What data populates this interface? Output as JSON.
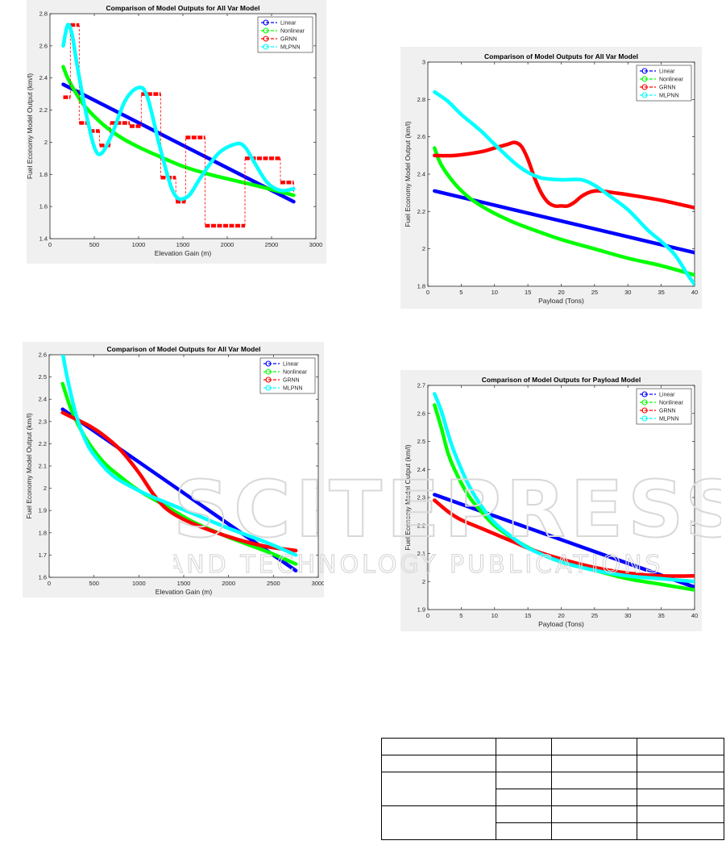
{
  "chart_data": [
    {
      "type": "line",
      "title": "Comparison of Model Outputs for All Var Model",
      "xlabel": "Elevation Gain (m)",
      "ylabel": "Fuel Economy Model Output (km/l)",
      "xlim": [
        0,
        3000
      ],
      "ylim": [
        1.4,
        2.8
      ],
      "xticks": [
        0,
        500,
        1000,
        1500,
        2000,
        2500,
        3000
      ],
      "yticks": [
        1.4,
        1.6,
        1.8,
        2.0,
        2.2,
        2.4,
        2.6,
        2.8
      ],
      "ytick_labels": [
        "1.4",
        "1.6",
        "1.8",
        "2",
        "2.2",
        "2.4",
        "2.6",
        "2.8"
      ],
      "legend_position": "top-right",
      "grid": false,
      "series": [
        {
          "name": "Linear",
          "color": "#0000ff",
          "x": [
            150,
            2750
          ],
          "y": [
            2.36,
            1.63
          ]
        },
        {
          "name": "Nonlinear",
          "color": "#00ff00",
          "x": [
            150,
            200,
            300,
            400,
            600,
            800,
            1000,
            1200,
            1500,
            1800,
            2100,
            2400,
            2750
          ],
          "y": [
            2.47,
            2.4,
            2.3,
            2.22,
            2.11,
            2.03,
            1.97,
            1.92,
            1.85,
            1.8,
            1.76,
            1.72,
            1.67
          ]
        },
        {
          "name": "GRNN",
          "color": "#ff0000",
          "style": "step-dashed",
          "x": [
            150,
            230,
            330,
            450,
            560,
            680,
            900,
            1030,
            1250,
            1420,
            1530,
            1750,
            2200,
            2600,
            2750
          ],
          "y": [
            2.28,
            2.73,
            2.12,
            2.07,
            1.98,
            2.12,
            2.1,
            2.3,
            1.78,
            1.63,
            2.03,
            1.48,
            1.9,
            1.75,
            1.69
          ]
        },
        {
          "name": "MLPNN",
          "color": "#00ffff",
          "x": [
            150,
            200,
            250,
            300,
            400,
            500,
            580,
            700,
            850,
            1000,
            1100,
            1250,
            1400,
            1550,
            1700,
            1900,
            2100,
            2200,
            2300,
            2450,
            2600,
            2750
          ],
          "y": [
            2.6,
            2.73,
            2.67,
            2.5,
            2.2,
            1.97,
            1.93,
            2.05,
            2.26,
            2.34,
            2.28,
            1.95,
            1.68,
            1.66,
            1.78,
            1.93,
            1.99,
            1.97,
            1.88,
            1.75,
            1.7,
            1.71
          ]
        }
      ]
    },
    {
      "type": "line",
      "title": "Comparison of Model Outputs for All Var Model",
      "xlabel": "Elevation Gain (m)",
      "ylabel": "Fuel Economy Model Output (km/l)",
      "xlim": [
        0,
        3000
      ],
      "ylim": [
        1.6,
        2.6
      ],
      "xticks": [
        0,
        500,
        1000,
        1500,
        2000,
        2500,
        3000
      ],
      "yticks": [
        1.6,
        1.7,
        1.8,
        1.9,
        2.0,
        2.1,
        2.2,
        2.3,
        2.4,
        2.5,
        2.6
      ],
      "ytick_labels": [
        "1.6",
        "1.7",
        "1.8",
        "1.9",
        "2",
        "2.1",
        "2.2",
        "2.3",
        "2.4",
        "2.5",
        "2.6"
      ],
      "legend_position": "top-right",
      "grid": false,
      "series": [
        {
          "name": "Linear",
          "color": "#0000ff",
          "x": [
            150,
            2750
          ],
          "y": [
            2.355,
            1.63
          ]
        },
        {
          "name": "Nonlinear",
          "color": "#00ff00",
          "x": [
            150,
            250,
            400,
            600,
            800,
            1000,
            1300,
            1600,
            2000,
            2400,
            2750
          ],
          "y": [
            2.47,
            2.35,
            2.23,
            2.12,
            2.05,
            1.99,
            1.92,
            1.85,
            1.78,
            1.72,
            1.66
          ]
        },
        {
          "name": "GRNN",
          "color": "#ff0000",
          "x": [
            150,
            300,
            450,
            600,
            800,
            1000,
            1150,
            1300,
            1500,
            1800,
            2100,
            2400,
            2750
          ],
          "y": [
            2.34,
            2.31,
            2.28,
            2.24,
            2.17,
            2.07,
            1.98,
            1.91,
            1.86,
            1.81,
            1.77,
            1.74,
            1.72
          ]
        },
        {
          "name": "MLPNN",
          "color": "#00ffff",
          "x": [
            150,
            200,
            300,
            400,
            500,
            700,
            900,
            1100,
            1400,
            1700,
            2000,
            2400,
            2750
          ],
          "y": [
            2.61,
            2.5,
            2.33,
            2.22,
            2.15,
            2.06,
            2.01,
            1.97,
            1.92,
            1.87,
            1.82,
            1.76,
            1.7
          ]
        }
      ]
    },
    {
      "type": "line",
      "title": "Comparison of Model Outputs for All Var Model",
      "xlabel": "Payload (Tons)",
      "ylabel": "Fuel Economy Model Output (km/l)",
      "xlim": [
        0,
        40
      ],
      "ylim": [
        1.8,
        3.0
      ],
      "xticks": [
        0,
        5,
        10,
        15,
        20,
        25,
        30,
        35,
        40
      ],
      "yticks": [
        1.8,
        2.0,
        2.2,
        2.4,
        2.6,
        2.8,
        3.0
      ],
      "ytick_labels": [
        "1.8",
        "2",
        "2.2",
        "2.4",
        "2.6",
        "2.8",
        "3"
      ],
      "legend_position": "top-right",
      "grid": false,
      "series": [
        {
          "name": "Linear",
          "color": "#0000ff",
          "x": [
            1,
            40
          ],
          "y": [
            2.31,
            1.98
          ]
        },
        {
          "name": "Nonlinear",
          "color": "#00ff00",
          "x": [
            1,
            2,
            4,
            6,
            8,
            10,
            13,
            16,
            20,
            25,
            30,
            35,
            40
          ],
          "y": [
            2.54,
            2.45,
            2.35,
            2.28,
            2.23,
            2.19,
            2.14,
            2.1,
            2.05,
            2.0,
            1.95,
            1.91,
            1.86
          ]
        },
        {
          "name": "GRNN",
          "color": "#ff0000",
          "x": [
            1,
            4,
            8,
            10,
            12,
            13,
            14,
            15,
            16,
            17,
            18,
            19,
            20,
            21,
            22,
            23,
            24,
            25,
            26,
            28,
            30,
            35,
            40
          ],
          "y": [
            2.5,
            2.5,
            2.52,
            2.54,
            2.56,
            2.57,
            2.55,
            2.48,
            2.38,
            2.3,
            2.25,
            2.23,
            2.23,
            2.23,
            2.25,
            2.28,
            2.3,
            2.31,
            2.31,
            2.3,
            2.29,
            2.26,
            2.22
          ]
        },
        {
          "name": "MLPNN",
          "color": "#00ffff",
          "x": [
            1,
            3,
            5,
            8,
            10,
            13,
            15,
            17,
            20,
            23,
            25,
            27,
            30,
            33,
            35,
            37,
            39,
            40
          ],
          "y": [
            2.84,
            2.79,
            2.72,
            2.63,
            2.56,
            2.46,
            2.41,
            2.38,
            2.37,
            2.37,
            2.34,
            2.29,
            2.21,
            2.1,
            2.04,
            1.97,
            1.86,
            1.81
          ]
        }
      ]
    },
    {
      "type": "line",
      "title": "Comparison of Model Outputs for Payload Model",
      "xlabel": "Payload (Tons)",
      "ylabel": "Fuel Economy Model Output (km/l)",
      "xlim": [
        0,
        40
      ],
      "ylim": [
        1.9,
        2.7
      ],
      "xticks": [
        0,
        5,
        10,
        15,
        20,
        25,
        30,
        35,
        40
      ],
      "yticks": [
        1.9,
        2.0,
        2.1,
        2.2,
        2.3,
        2.4,
        2.5,
        2.6,
        2.7
      ],
      "ytick_labels": [
        "1.9",
        "2",
        "2.1",
        "2.2",
        "2.3",
        "2.4",
        "2.5",
        "2.6",
        "2.7"
      ],
      "legend_position": "top-right",
      "grid": false,
      "series": [
        {
          "name": "Linear",
          "color": "#0000ff",
          "x": [
            1,
            40
          ],
          "y": [
            2.31,
            1.98
          ]
        },
        {
          "name": "Nonlinear",
          "color": "#00ff00",
          "x": [
            1,
            2,
            3,
            4,
            6,
            8,
            10,
            13,
            16,
            20,
            25,
            30,
            35,
            40
          ],
          "y": [
            2.63,
            2.55,
            2.46,
            2.4,
            2.31,
            2.25,
            2.2,
            2.15,
            2.11,
            2.07,
            2.04,
            2.01,
            1.99,
            1.97
          ]
        },
        {
          "name": "GRNN",
          "color": "#ff0000",
          "x": [
            1,
            3,
            5,
            8,
            10,
            13,
            16,
            20,
            25,
            30,
            35,
            40
          ],
          "y": [
            2.29,
            2.25,
            2.22,
            2.19,
            2.17,
            2.14,
            2.11,
            2.08,
            2.05,
            2.03,
            2.02,
            2.02
          ]
        },
        {
          "name": "MLPNN",
          "color": "#00ffff",
          "x": [
            1,
            2,
            3,
            4,
            6,
            8,
            10,
            12,
            15,
            20,
            25,
            30,
            35,
            40
          ],
          "y": [
            2.67,
            2.61,
            2.53,
            2.46,
            2.35,
            2.27,
            2.21,
            2.17,
            2.12,
            2.07,
            2.04,
            2.02,
            2.01,
            2.0
          ]
        }
      ]
    }
  ],
  "watermark": {
    "big": "SCITEPRESS",
    "small": "SCIENCE AND TECHNOLOGY PUBLICATIONS"
  },
  "bottom_table": {
    "rows": 6,
    "cols": 4
  }
}
